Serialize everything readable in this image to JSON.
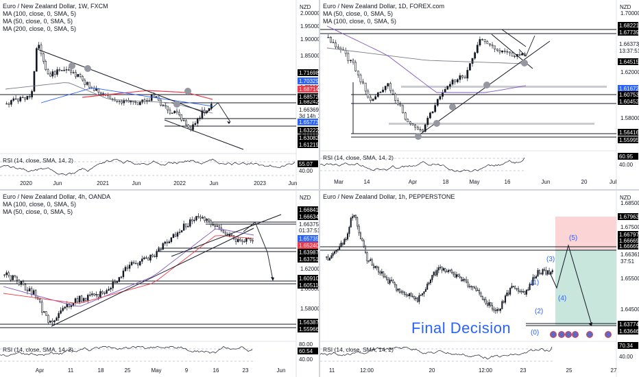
{
  "panels": [
    {
      "title": "Euro / New Zealand Dollar, 1W, FXCM",
      "indicators": [
        "MA (100, close, 0, SMA, 5)",
        "MA (50, close, 0, SMA, 5)",
        "MA (200, close, 0, SMA, 5)"
      ],
      "currency": "NZD",
      "rsi_label": "RSI (14, close, SMA, 14, 2)",
      "price_ticks": [
        "2.00000",
        "1.95000",
        "1.90000",
        "1.85000",
        "1.80000",
        "1.75000",
        "1.70000",
        "1.65000",
        "1.60000"
      ],
      "price_labels": [
        {
          "text": "1.71698",
          "bg": "#000000",
          "fg": "#ffffff"
        },
        {
          "text": "1.70329",
          "bg": "#2962ff",
          "fg": "#ffffff"
        },
        {
          "text": "1.68714",
          "bg": "#f23645",
          "fg": "#ffffff"
        },
        {
          "text": "1.68242",
          "bg": "#000000",
          "fg": "#ffffff"
        },
        {
          "text": "1.68572",
          "bg": "#000000",
          "fg": "#ffffff"
        },
        {
          "text": "1.66369",
          "bg": "#ffffff",
          "fg": "#131722"
        },
        {
          "text": "3d 14h",
          "bg": "#ffffff",
          "fg": "#131722"
        },
        {
          "text": "1.65773",
          "bg": "#2962ff",
          "fg": "#ffffff"
        },
        {
          "text": "1.63222",
          "bg": "#000000",
          "fg": "#ffffff"
        },
        {
          "text": "1.63082",
          "bg": "#000000",
          "fg": "#ffffff"
        },
        {
          "text": "1.61219",
          "bg": "#000000",
          "fg": "#ffffff"
        }
      ],
      "rsi_labels": [
        {
          "text": "55.07",
          "bg": "#000000",
          "fg": "#ffffff"
        },
        {
          "text": "40.00",
          "bg": "#ffffff",
          "fg": "#131722"
        }
      ],
      "x_labels": [
        "2020",
        "Jun",
        "2021",
        "Jun",
        "2022",
        "Jun",
        "2023",
        "Jun"
      ]
    },
    {
      "title": "Euro / New Zealand Dollar, 1D, FOREX.com",
      "indicators": [
        "MA (50, close, 0, SMA, 5)",
        "MA (100, close, 0, SMA, 5)"
      ],
      "currency": "NZD",
      "rsi_label": "RSI (14, close, SMA, 14, 2)",
      "price_ticks": [
        "1.70000",
        "1.66373",
        "1.62000",
        "1.58000"
      ],
      "price_labels": [
        {
          "text": "1.68221",
          "bg": "#000000",
          "fg": "#ffffff"
        },
        {
          "text": "1.67739",
          "bg": "#000000",
          "fg": "#ffffff"
        },
        {
          "text": "1.66373",
          "bg": "#ffffff",
          "fg": "#131722"
        },
        {
          "text": "13:37:51",
          "bg": "#ffffff",
          "fg": "#131722"
        },
        {
          "text": "1.64515",
          "bg": "#000000",
          "fg": "#ffffff"
        },
        {
          "text": "1.61672",
          "bg": "#2962ff",
          "fg": "#ffffff"
        },
        {
          "text": "1.60753",
          "bg": "#000000",
          "fg": "#ffffff"
        },
        {
          "text": "1.60452",
          "bg": "#000000",
          "fg": "#ffffff"
        },
        {
          "text": "1.56416",
          "bg": "#000000",
          "fg": "#ffffff"
        },
        {
          "text": "1.55995",
          "bg": "#000000",
          "fg": "#ffffff"
        }
      ],
      "rsi_labels": [
        {
          "text": "60.95",
          "bg": "#000000",
          "fg": "#ffffff"
        },
        {
          "text": "40.00",
          "bg": "#ffffff",
          "fg": "#131722"
        }
      ],
      "x_labels": [
        "Mar",
        "14",
        "Apr",
        "18",
        "May",
        "16",
        "Jun",
        "20",
        "Jul"
      ]
    },
    {
      "title": "Euro / New Zealand Dollar, 4h, OANDA",
      "indicators": [
        "MA (100, close, 0, SMA, 5)",
        "MA (50, close, 0, SMA, 5)"
      ],
      "currency": "NZD",
      "rsi_label": "RSI (14, close, SMA, 14, 2)",
      "price_ticks": [
        "1.62000",
        "1.60000",
        "1.58000"
      ],
      "price_labels": [
        {
          "text": "1.66841",
          "bg": "#000000",
          "fg": "#ffffff"
        },
        {
          "text": "1.66634",
          "bg": "#000000",
          "fg": "#ffffff"
        },
        {
          "text": "1.66375",
          "bg": "#ffffff",
          "fg": "#131722"
        },
        {
          "text": "01:37:51",
          "bg": "#ffffff",
          "fg": "#131722"
        },
        {
          "text": "1.65735",
          "bg": "#2962ff",
          "fg": "#ffffff"
        },
        {
          "text": "1.65240",
          "bg": "#f23645",
          "fg": "#ffffff"
        },
        {
          "text": "1.63987",
          "bg": "#000000",
          "fg": "#ffffff"
        },
        {
          "text": "1.63751",
          "bg": "#000000",
          "fg": "#ffffff"
        },
        {
          "text": "1.60910",
          "bg": "#000000",
          "fg": "#ffffff"
        },
        {
          "text": "1.60511",
          "bg": "#000000",
          "fg": "#ffffff"
        },
        {
          "text": "1.56387",
          "bg": "#000000",
          "fg": "#ffffff"
        },
        {
          "text": "1.55966",
          "bg": "#000000",
          "fg": "#ffffff"
        }
      ],
      "rsi_labels": [
        {
          "text": "80.00",
          "bg": "#ffffff",
          "fg": "#131722"
        },
        {
          "text": "60.54",
          "bg": "#000000",
          "fg": "#ffffff"
        },
        {
          "text": "40.00",
          "bg": "#ffffff",
          "fg": "#131722"
        }
      ],
      "x_labels": [
        "Apr",
        "11",
        "18",
        "25",
        "May",
        "9",
        "16",
        "23",
        "Jun"
      ]
    },
    {
      "title": "Euro / New Zealand Dollar, 1h, PEPPERSTONE",
      "indicators": [],
      "currency": "NZD",
      "rsi_label": "RSI (14, close, SMA, 14, 2)",
      "price_ticks": [
        "1.68500",
        "1.67500",
        "1.66361",
        "37:51",
        "1.65500",
        "1.64500"
      ],
      "price_labels": [
        {
          "text": "1.67963",
          "bg": "#000000",
          "fg": "#ffffff"
        },
        {
          "text": "1.66797",
          "bg": "#000000",
          "fg": "#ffffff"
        },
        {
          "text": "1.66669",
          "bg": "#000000",
          "fg": "#ffffff"
        },
        {
          "text": "1.66669",
          "bg": "#000000",
          "fg": "#ffffff"
        },
        {
          "text": "1.63774",
          "bg": "#000000",
          "fg": "#ffffff"
        },
        {
          "text": "1.63646",
          "bg": "#000000",
          "fg": "#ffffff"
        }
      ],
      "rsi_labels": [
        {
          "text": "70.34",
          "bg": "#000000",
          "fg": "#ffffff"
        },
        {
          "text": "40.00",
          "bg": "#ffffff",
          "fg": "#131722"
        }
      ],
      "x_labels": [
        "11",
        "12:00",
        "20",
        "12:00",
        "23",
        "25",
        "27"
      ],
      "waves": [
        "(0)",
        "(1)",
        "(2)",
        "(3)",
        "(4)",
        "(5)"
      ],
      "annotation": "Final Decision"
    }
  ],
  "colors": {
    "bull": "#000000",
    "bear": "#ffffff",
    "ma_red": "#f23645",
    "ma_blue": "#2962ff",
    "ma_gray": "#787b86",
    "trend": "#131722",
    "target_green": "#c8e6dc",
    "stop_red": "#fbd4d6"
  }
}
